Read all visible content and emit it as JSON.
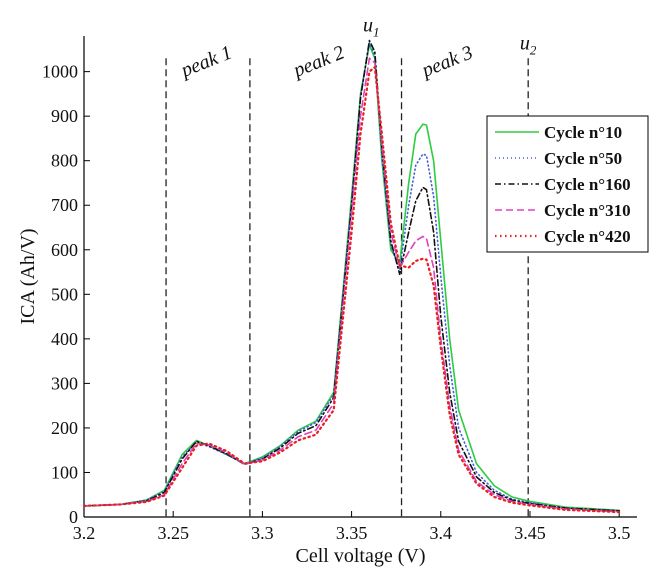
{
  "chart_data": {
    "type": "line",
    "xlabel": "Cell voltage (V)",
    "ylabel": "ICA (Ah/V)",
    "xlim": [
      3.2,
      3.51
    ],
    "ylim": [
      0,
      1080
    ],
    "xticks": [
      "3.2",
      "3.25",
      "3.3",
      "3.35",
      "3.4",
      "3.45",
      "3.5"
    ],
    "yticks": [
      "0",
      "100",
      "200",
      "300",
      "400",
      "500",
      "600",
      "700",
      "800",
      "900",
      "1000"
    ],
    "grid": false,
    "legend_position": "top-right",
    "vlines": [
      3.246,
      3.293,
      3.378,
      3.449
    ],
    "annotations": [
      {
        "text": "peak 1",
        "x": 3.27,
        "y": 1010
      },
      {
        "text": "peak 2",
        "x": 3.333,
        "y": 1010
      },
      {
        "text": "peak 3",
        "x": 3.405,
        "y": 1010
      },
      {
        "text": "u",
        "sub": "1",
        "x": 3.361,
        "y": 1090
      },
      {
        "text": "u",
        "sub": "2",
        "x": 3.449,
        "y": 1050
      }
    ],
    "series": [
      {
        "name": "Cycle n°10",
        "color": "#2ecc40",
        "dash": "solid",
        "x": [
          3.2,
          3.22,
          3.235,
          3.245,
          3.255,
          3.263,
          3.27,
          3.28,
          3.29,
          3.3,
          3.31,
          3.32,
          3.33,
          3.34,
          3.35,
          3.355,
          3.36,
          3.363,
          3.367,
          3.372,
          3.377,
          3.382,
          3.386,
          3.39,
          3.392,
          3.396,
          3.4,
          3.405,
          3.41,
          3.42,
          3.43,
          3.44,
          3.45,
          3.47,
          3.5
        ],
        "y": [
          25,
          28,
          38,
          60,
          140,
          172,
          160,
          140,
          120,
          135,
          160,
          195,
          215,
          280,
          720,
          950,
          1060,
          1030,
          800,
          600,
          570,
          750,
          860,
          882,
          880,
          800,
          620,
          400,
          240,
          120,
          70,
          45,
          35,
          22,
          15
        ]
      },
      {
        "name": "Cycle n°50",
        "color": "#4060d8",
        "dash": "1,3",
        "x": [
          3.2,
          3.22,
          3.235,
          3.245,
          3.255,
          3.263,
          3.27,
          3.28,
          3.29,
          3.3,
          3.31,
          3.32,
          3.33,
          3.34,
          3.35,
          3.355,
          3.36,
          3.363,
          3.367,
          3.372,
          3.377,
          3.382,
          3.386,
          3.39,
          3.392,
          3.396,
          3.4,
          3.405,
          3.41,
          3.42,
          3.43,
          3.44,
          3.45,
          3.47,
          3.5
        ],
        "y": [
          25,
          28,
          38,
          58,
          135,
          168,
          158,
          140,
          120,
          133,
          158,
          192,
          212,
          275,
          710,
          945,
          1065,
          1035,
          810,
          610,
          555,
          700,
          790,
          815,
          812,
          720,
          540,
          340,
          200,
          100,
          60,
          40,
          32,
          20,
          14
        ]
      },
      {
        "name": "Cycle n°160",
        "color": "#111111",
        "dash": "6,3,1.5,3",
        "x": [
          3.2,
          3.22,
          3.235,
          3.245,
          3.255,
          3.263,
          3.27,
          3.28,
          3.29,
          3.3,
          3.31,
          3.32,
          3.33,
          3.34,
          3.35,
          3.355,
          3.36,
          3.363,
          3.367,
          3.372,
          3.377,
          3.382,
          3.386,
          3.39,
          3.392,
          3.396,
          3.4,
          3.405,
          3.41,
          3.42,
          3.43,
          3.44,
          3.45,
          3.47,
          3.5
        ],
        "y": [
          25,
          28,
          36,
          55,
          130,
          170,
          160,
          142,
          118,
          130,
          155,
          188,
          205,
          268,
          700,
          940,
          1070,
          1045,
          830,
          620,
          545,
          640,
          710,
          740,
          735,
          640,
          450,
          280,
          170,
          90,
          55,
          38,
          30,
          20,
          14
        ]
      },
      {
        "name": "Cycle n°310",
        "color": "#e040c0",
        "dash": "7,4",
        "x": [
          3.2,
          3.22,
          3.235,
          3.245,
          3.255,
          3.263,
          3.27,
          3.28,
          3.29,
          3.3,
          3.31,
          3.32,
          3.33,
          3.34,
          3.35,
          3.355,
          3.36,
          3.363,
          3.367,
          3.372,
          3.377,
          3.382,
          3.386,
          3.39,
          3.392,
          3.396,
          3.4,
          3.405,
          3.41,
          3.42,
          3.43,
          3.44,
          3.45,
          3.47,
          3.5
        ],
        "y": [
          25,
          28,
          35,
          50,
          120,
          165,
          162,
          145,
          118,
          128,
          150,
          180,
          195,
          255,
          680,
          900,
          1030,
          1020,
          840,
          640,
          560,
          595,
          620,
          630,
          625,
          560,
          400,
          250,
          150,
          80,
          50,
          35,
          28,
          18,
          12
        ]
      },
      {
        "name": "Cycle n°420",
        "color": "#e82020",
        "dash": "1.5,3.5",
        "x": [
          3.2,
          3.22,
          3.235,
          3.245,
          3.255,
          3.263,
          3.27,
          3.28,
          3.29,
          3.3,
          3.31,
          3.32,
          3.33,
          3.34,
          3.35,
          3.355,
          3.36,
          3.363,
          3.367,
          3.372,
          3.377,
          3.382,
          3.386,
          3.39,
          3.392,
          3.396,
          3.4,
          3.405,
          3.41,
          3.42,
          3.43,
          3.44,
          3.45,
          3.47,
          3.5
        ],
        "y": [
          25,
          28,
          34,
          48,
          110,
          160,
          165,
          148,
          120,
          125,
          145,
          172,
          185,
          240,
          640,
          860,
          1000,
          1010,
          860,
          660,
          565,
          560,
          575,
          580,
          578,
          520,
          380,
          230,
          140,
          75,
          45,
          32,
          26,
          16,
          11
        ]
      }
    ]
  }
}
